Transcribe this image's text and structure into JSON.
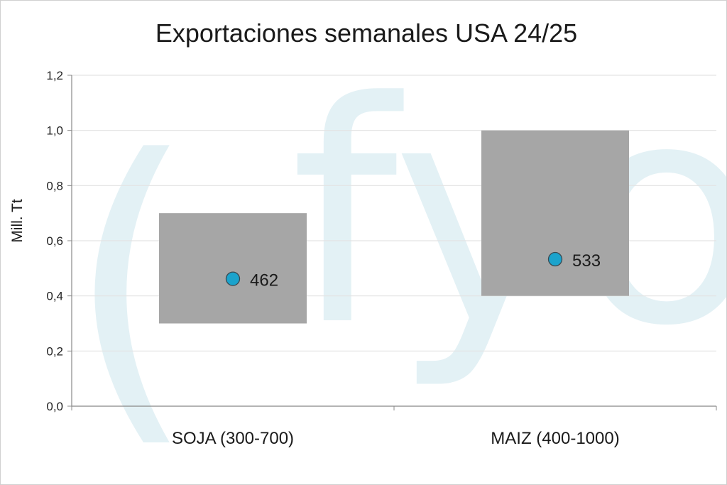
{
  "chart_data": {
    "type": "range_bar_with_points",
    "title": "Exportaciones semanales USA 24/25",
    "ylabel": "Mill. Tt",
    "xlabel": "",
    "ylim": [
      0,
      1.2
    ],
    "yticks": [
      "0,0",
      "0,2",
      "0,4",
      "0,6",
      "0,8",
      "1,0",
      "1,2"
    ],
    "ytick_values": [
      0,
      0.2,
      0.4,
      0.6,
      0.8,
      1.0,
      1.2
    ],
    "grid": true,
    "categories": [
      "SOJA (300-700)",
      "MAIZ (400-1000)"
    ],
    "ranges": [
      {
        "low": 0.3,
        "high": 0.7
      },
      {
        "low": 0.4,
        "high": 1.0
      }
    ],
    "points": [
      {
        "value": 0.462,
        "label": "462"
      },
      {
        "value": 0.533,
        "label": "533"
      }
    ],
    "colors": {
      "range_bar": "#a6a6a6",
      "point": "#1ba3cc",
      "gridline": "#e3e3e3",
      "axis": "#888888",
      "watermark": "#e3f1f5"
    }
  },
  "watermark": {
    "text": "fyo",
    "paren": "("
  }
}
